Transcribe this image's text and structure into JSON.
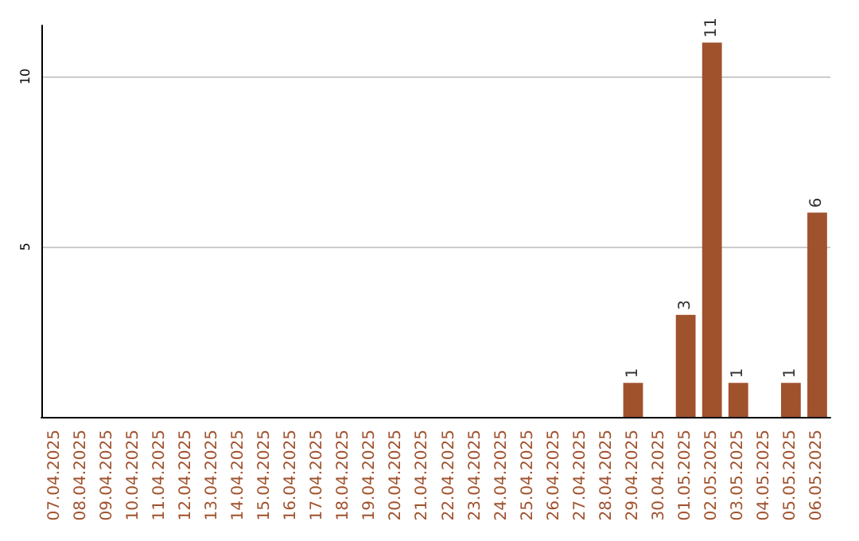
{
  "chart_data": {
    "type": "bar",
    "categories": [
      "07.04.2025",
      "08.04.2025",
      "09.04.2025",
      "10.04.2025",
      "11.04.2025",
      "12.04.2025",
      "13.04.2025",
      "14.04.2025",
      "15.04.2025",
      "16.04.2025",
      "17.04.2025",
      "18.04.2025",
      "19.04.2025",
      "20.04.2025",
      "21.04.2025",
      "22.04.2025",
      "23.04.2025",
      "24.04.2025",
      "25.04.2025",
      "26.04.2025",
      "27.04.2025",
      "28.04.2025",
      "29.04.2025",
      "30.04.2025",
      "01.05.2025",
      "02.05.2025",
      "03.05.2025",
      "04.05.2025",
      "05.05.2025",
      "06.05.2025"
    ],
    "values": [
      0,
      0,
      0,
      0,
      0,
      0,
      0,
      0,
      0,
      0,
      0,
      0,
      0,
      0,
      0,
      0,
      0,
      0,
      0,
      0,
      0,
      0,
      1,
      0,
      3,
      11,
      1,
      0,
      1,
      6
    ],
    "value_labels": [
      null,
      null,
      null,
      null,
      null,
      null,
      null,
      null,
      null,
      null,
      null,
      null,
      null,
      null,
      null,
      null,
      null,
      null,
      null,
      null,
      null,
      null,
      "1",
      null,
      "3",
      "11",
      "1",
      null,
      "1",
      "6"
    ],
    "color": "#a0522d",
    "ylim": [
      0,
      11.5
    ],
    "yticks": [
      5,
      10
    ],
    "grid": "y"
  }
}
